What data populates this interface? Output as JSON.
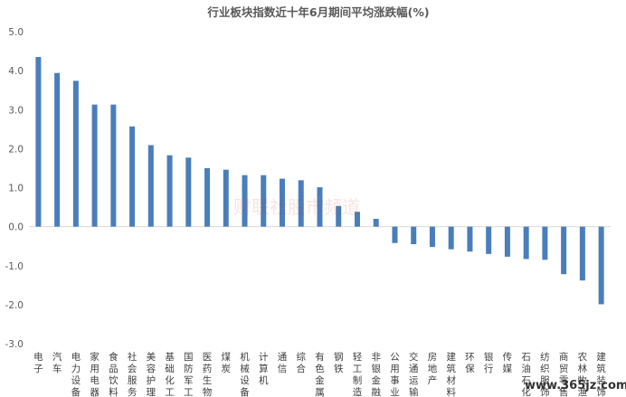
{
  "chart_data": {
    "type": "bar",
    "title": "行业板块指数近十年6月期间平均涨跌幅(%)",
    "xlabel": "",
    "ylabel": "",
    "ylim": [
      -3.0,
      5.0
    ],
    "yticks": [
      "5.0",
      "4.0",
      "3.0",
      "2.0",
      "1.0",
      "0.0",
      "-1.0",
      "-2.0",
      "-3.0"
    ],
    "ytick_values": [
      5,
      4,
      3,
      2,
      1,
      0,
      -1,
      -2,
      -3
    ],
    "grid": false,
    "legend": "none",
    "bar_color": "#4a7ebb",
    "categories": [
      "电子",
      "汽车",
      "电力设备",
      "家用电器",
      "食品饮料",
      "社会服务",
      "美容护理",
      "基础化工",
      "国防军工",
      "医药生物",
      "煤炭",
      "机械设备",
      "计算机",
      "通信",
      "综合",
      "有色金属",
      "钢铁",
      "轻工制造",
      "非银金融",
      "公用事业",
      "交通运输",
      "房地产",
      "建筑材料",
      "环保",
      "银行",
      "传媒",
      "石油石化",
      "纺织服饰",
      "商贸零售",
      "农林牧渔",
      "建筑装饰"
    ],
    "values": [
      4.35,
      3.94,
      3.74,
      3.13,
      3.13,
      2.57,
      2.09,
      1.83,
      1.77,
      1.5,
      1.46,
      1.32,
      1.32,
      1.23,
      1.19,
      1.01,
      0.53,
      0.38,
      0.2,
      -0.42,
      -0.45,
      -0.52,
      -0.58,
      -0.64,
      -0.7,
      -0.77,
      -0.83,
      -0.85,
      -1.22,
      -1.38,
      -1.99
    ]
  },
  "watermark": "财联社股市频道",
  "site_label": "www.365jz.com"
}
